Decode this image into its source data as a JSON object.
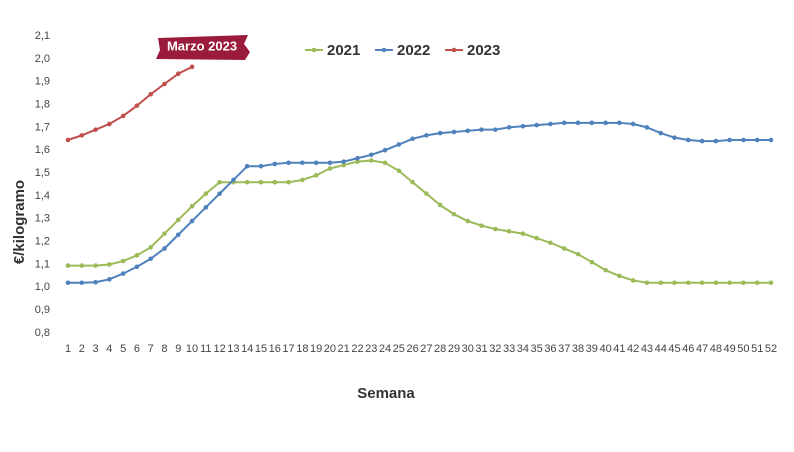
{
  "chart_data": {
    "type": "line",
    "annotation": "Marzo 2023",
    "x_label": "Semana",
    "y_label": "€/kilogramo",
    "categories": [
      1,
      2,
      3,
      4,
      5,
      6,
      7,
      8,
      9,
      10,
      11,
      12,
      13,
      14,
      15,
      16,
      17,
      18,
      19,
      20,
      21,
      22,
      23,
      24,
      25,
      26,
      27,
      28,
      29,
      30,
      31,
      32,
      33,
      34,
      35,
      36,
      37,
      38,
      39,
      40,
      41,
      42,
      43,
      44,
      45,
      46,
      47,
      48,
      49,
      50,
      51,
      52
    ],
    "series": [
      {
        "name": "2021",
        "color": "#9bbb59",
        "values": [
          1.095,
          1.095,
          1.095,
          1.1,
          1.115,
          1.14,
          1.175,
          1.235,
          1.295,
          1.355,
          1.41,
          1.46,
          1.46,
          1.46,
          1.46,
          1.46,
          1.46,
          1.47,
          1.49,
          1.52,
          1.535,
          1.55,
          1.555,
          1.545,
          1.51,
          1.46,
          1.41,
          1.36,
          1.32,
          1.29,
          1.27,
          1.255,
          1.245,
          1.235,
          1.215,
          1.195,
          1.17,
          1.145,
          1.11,
          1.075,
          1.05,
          1.03,
          1.02,
          1.02,
          1.02,
          1.02,
          1.02,
          1.02,
          1.02,
          1.02,
          1.02,
          1.02
        ]
      },
      {
        "name": "2022",
        "color": "#4f81bd",
        "values": [
          1.02,
          1.02,
          1.022,
          1.035,
          1.06,
          1.09,
          1.125,
          1.17,
          1.23,
          1.29,
          1.35,
          1.41,
          1.47,
          1.53,
          1.53,
          1.54,
          1.545,
          1.545,
          1.545,
          1.545,
          1.55,
          1.565,
          1.58,
          1.6,
          1.625,
          1.65,
          1.665,
          1.675,
          1.68,
          1.685,
          1.69,
          1.69,
          1.7,
          1.705,
          1.71,
          1.715,
          1.72,
          1.72,
          1.72,
          1.72,
          1.72,
          1.715,
          1.7,
          1.675,
          1.655,
          1.645,
          1.64,
          1.64,
          1.645,
          1.645,
          1.645,
          1.645
        ]
      },
      {
        "name": "2023",
        "color": "#c0504d",
        "values": [
          1.645,
          1.665,
          1.69,
          1.715,
          1.75,
          1.795,
          1.845,
          1.89,
          1.935,
          1.965,
          null,
          null,
          null,
          null,
          null,
          null,
          null,
          null,
          null,
          null,
          null,
          null,
          null,
          null,
          null,
          null,
          null,
          null,
          null,
          null,
          null,
          null,
          null,
          null,
          null,
          null,
          null,
          null,
          null,
          null,
          null,
          null,
          null,
          null,
          null,
          null,
          null,
          null,
          null,
          null,
          null,
          null
        ]
      }
    ],
    "ylim": [
      0.8,
      2.1
    ],
    "yticks": [
      {
        "value": 0.8,
        "label": "0,8"
      },
      {
        "value": 0.9,
        "label": "0,9"
      },
      {
        "value": 1.0,
        "label": "1,0"
      },
      {
        "value": 1.1,
        "label": "1,1"
      },
      {
        "value": 1.2,
        "label": "1,2"
      },
      {
        "value": 1.3,
        "label": "1,3"
      },
      {
        "value": 1.4,
        "label": "1,4"
      },
      {
        "value": 1.5,
        "label": "1,5"
      },
      {
        "value": 1.6,
        "label": "1,6"
      },
      {
        "value": 1.7,
        "label": "1,7"
      },
      {
        "value": 1.8,
        "label": "1,8"
      },
      {
        "value": 1.9,
        "label": "1,9"
      },
      {
        "value": 2.0,
        "label": "2,0"
      },
      {
        "value": 2.1,
        "label": "2,1"
      }
    ],
    "legend": "top"
  }
}
